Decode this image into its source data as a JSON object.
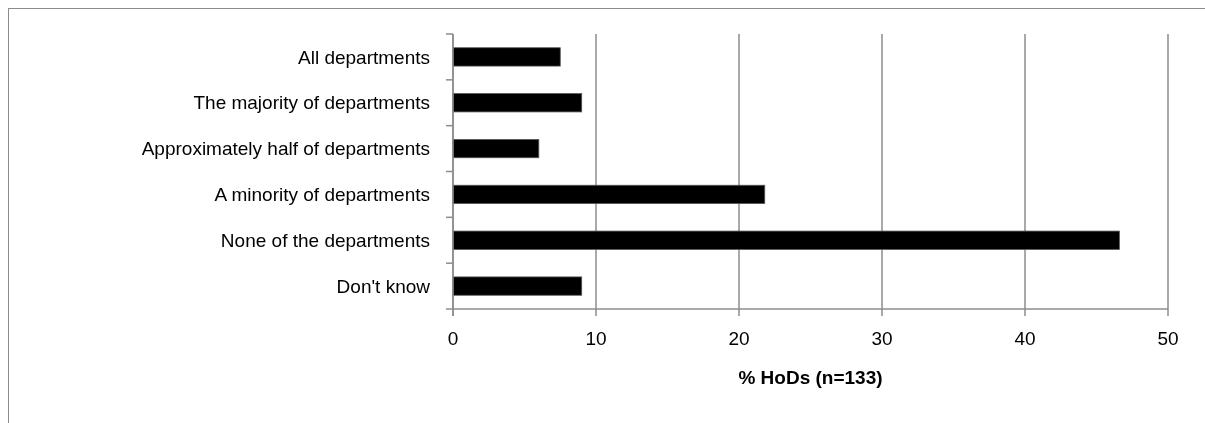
{
  "chart_data": {
    "type": "bar",
    "orientation": "horizontal",
    "xlabel": "% HoDs (n=133)",
    "categories": [
      "All departments",
      "The majority of departments",
      "Approximately half of departments",
      "A minority of departments",
      "None of the departments",
      "Don't know"
    ],
    "values": [
      7.5,
      9.0,
      6.0,
      21.8,
      46.6,
      9.0
    ],
    "color": "#000000",
    "xlim": [
      0,
      50
    ],
    "xticks": [
      0,
      10,
      20,
      30,
      40,
      50
    ],
    "grid": "x"
  }
}
